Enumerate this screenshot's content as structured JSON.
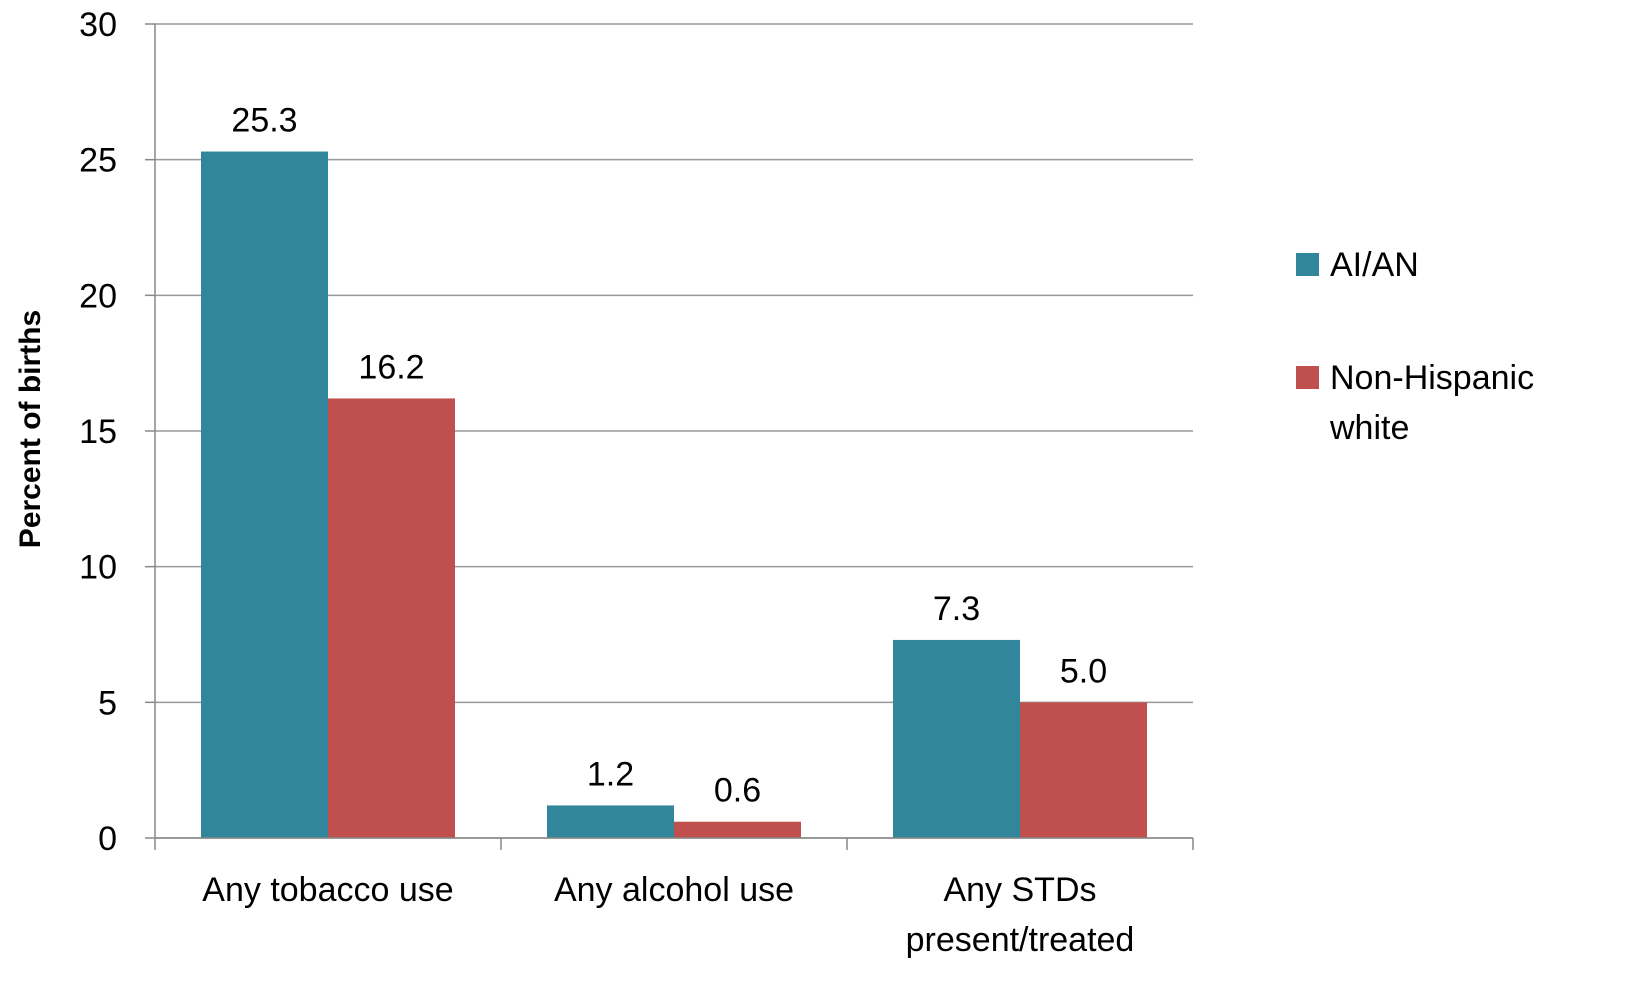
{
  "chart_data": {
    "type": "bar",
    "title": "",
    "xlabel": "",
    "ylabel": "Percent of births",
    "ylim": [
      0,
      30
    ],
    "yticks": [
      "0",
      "5",
      "10",
      "15",
      "20",
      "25",
      "30"
    ],
    "grid": true,
    "legend_position": "right",
    "categories": [
      [
        "Any tobacco use"
      ],
      [
        "Any alcohol use"
      ],
      [
        "Any STDs",
        "present/treated"
      ]
    ],
    "series": [
      {
        "name": "AI/AN",
        "color": "#31869B",
        "values": [
          25.3,
          1.2,
          7.3
        ],
        "labels": [
          "25.3",
          "1.2",
          "7.3"
        ]
      },
      {
        "name": "Non-Hispanic white",
        "legend_lines": [
          "Non-Hispanic",
          "white"
        ],
        "color": "#C0504D",
        "values": [
          16.2,
          0.6,
          5.0
        ],
        "labels": [
          "16.2",
          "0.6",
          "5.0"
        ]
      }
    ]
  }
}
